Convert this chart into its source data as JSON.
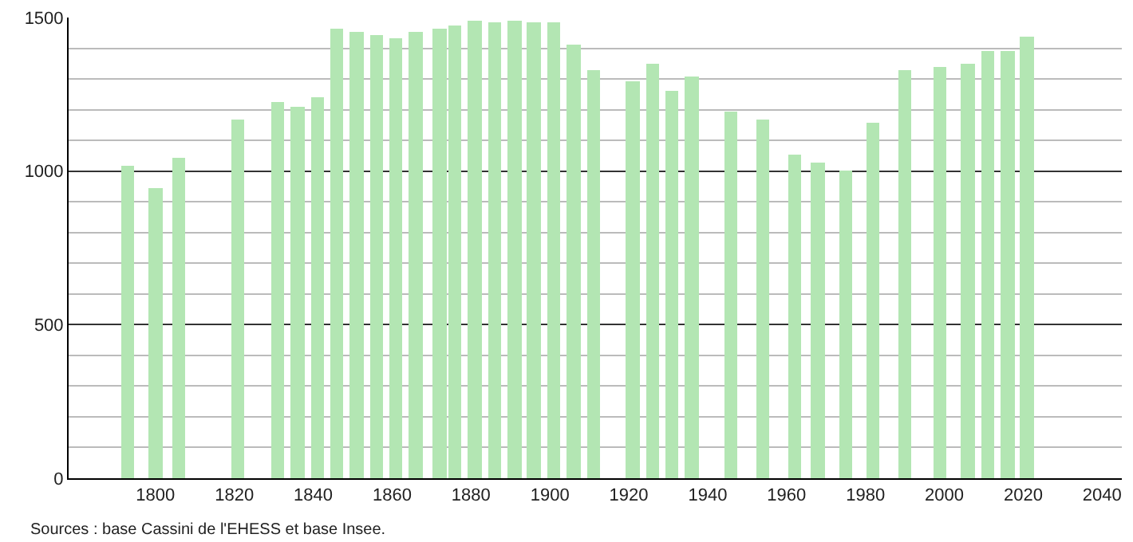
{
  "chart_data": {
    "type": "bar",
    "x": [
      1793,
      1800,
      1806,
      1821,
      1831,
      1836,
      1841,
      1846,
      1851,
      1856,
      1861,
      1866,
      1872,
      1876,
      1881,
      1886,
      1891,
      1896,
      1901,
      1906,
      1911,
      1921,
      1926,
      1931,
      1936,
      1946,
      1954,
      1962,
      1968,
      1975,
      1982,
      1990,
      1999,
      2006,
      2011,
      2016,
      2021
    ],
    "values": [
      1017,
      945,
      1043,
      1169,
      1224,
      1210,
      1241,
      1462,
      1452,
      1441,
      1431,
      1452,
      1466,
      1474,
      1488,
      1483,
      1488,
      1483,
      1483,
      1411,
      1328,
      1293,
      1349,
      1262,
      1307,
      1195,
      1169,
      1055,
      1030,
      1004,
      1159,
      1328,
      1340,
      1349,
      1393,
      1393,
      1437
    ],
    "color": "#b3e6b3",
    "xlim": [
      1778,
      2045
    ],
    "xticks": [
      1800,
      1820,
      1840,
      1860,
      1880,
      1900,
      1920,
      1940,
      1960,
      1980,
      2000,
      2020,
      2040
    ],
    "ylim": [
      0,
      1500
    ],
    "yticks": [
      0,
      500,
      1000,
      1500
    ],
    "grid": "y",
    "annotations": [
      "Sources : base Cassini de l'EHESS et base Insee."
    ]
  }
}
